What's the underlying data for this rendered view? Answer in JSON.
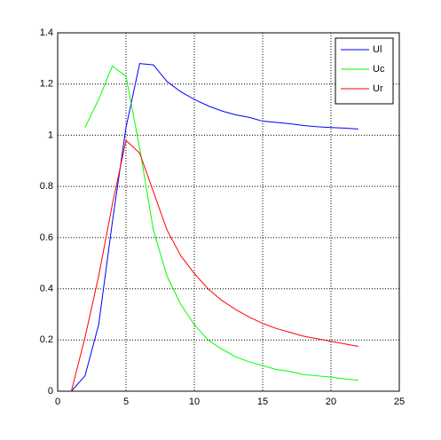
{
  "chart_data": {
    "type": "line",
    "x": [
      1,
      2,
      3,
      4,
      5,
      6,
      7,
      8,
      9,
      10,
      11,
      12,
      13,
      14,
      15,
      16,
      17,
      18,
      19,
      20,
      21,
      22
    ],
    "series": [
      {
        "name": "Ul",
        "color": "#0000ff",
        "values": [
          0,
          0.06,
          0.26,
          0.66,
          1.03,
          1.28,
          1.275,
          1.21,
          1.17,
          1.14,
          1.115,
          1.095,
          1.08,
          1.07,
          1.055,
          1.05,
          1.045,
          1.038,
          1.033,
          1.03,
          1.028,
          1.024
        ]
      },
      {
        "name": "Uc",
        "color": "#00ff00",
        "values": [
          null,
          1.03,
          1.14,
          1.27,
          1.23,
          0.95,
          0.63,
          0.45,
          0.34,
          0.26,
          0.2,
          0.165,
          0.135,
          0.115,
          0.1,
          0.085,
          0.077,
          0.065,
          0.06,
          0.055,
          0.048,
          0.043
        ]
      },
      {
        "name": "Ur",
        "color": "#ff0000",
        "values": [
          0,
          0.21,
          0.45,
          0.73,
          0.98,
          0.93,
          0.78,
          0.63,
          0.53,
          0.46,
          0.4,
          0.355,
          0.32,
          0.29,
          0.265,
          0.245,
          0.23,
          0.215,
          0.205,
          0.195,
          0.185,
          0.175
        ]
      }
    ],
    "xlim": [
      0,
      25
    ],
    "xticks": [
      0,
      5,
      10,
      15,
      20,
      25
    ],
    "ylim": [
      0,
      1.4
    ],
    "yticks": [
      0,
      0.2,
      0.4,
      0.6,
      0.8,
      1,
      1.2,
      1.4
    ],
    "grid": true,
    "legend": "top-right"
  }
}
